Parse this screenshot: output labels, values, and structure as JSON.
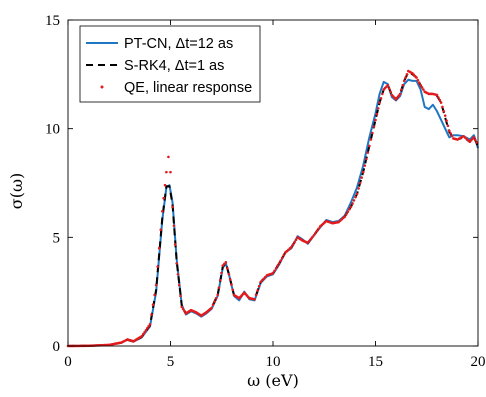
{
  "chart_data": {
    "type": "line",
    "xlabel": "ω (eV)",
    "ylabel": "σ(ω)",
    "xlim": [
      0,
      20
    ],
    "ylim": [
      0,
      15
    ],
    "xticks": [
      "0",
      "5",
      "10",
      "15",
      "20"
    ],
    "yticks": [
      "0",
      "5",
      "10",
      "15"
    ],
    "grid": false,
    "legend_position": "top-left",
    "colors": {
      "pt_cn": "#1f77c4",
      "s_rk4": "#000000",
      "qe": "#e41a1c"
    },
    "series": [
      {
        "name": "PT-CN,  Δt=12 as",
        "style": "solid",
        "points": [
          [
            0,
            0
          ],
          [
            1,
            0.01
          ],
          [
            2,
            0.05
          ],
          [
            2.6,
            0.15
          ],
          [
            2.9,
            0.3
          ],
          [
            3.2,
            0.2
          ],
          [
            3.6,
            0.4
          ],
          [
            4.0,
            0.9
          ],
          [
            4.3,
            2.5
          ],
          [
            4.6,
            5.8
          ],
          [
            4.8,
            7.3
          ],
          [
            4.95,
            7.4
          ],
          [
            5.1,
            6.6
          ],
          [
            5.3,
            4.0
          ],
          [
            5.55,
            1.9
          ],
          [
            5.75,
            1.45
          ],
          [
            6.0,
            1.6
          ],
          [
            6.25,
            1.5
          ],
          [
            6.5,
            1.35
          ],
          [
            6.75,
            1.5
          ],
          [
            7.0,
            1.7
          ],
          [
            7.3,
            2.3
          ],
          [
            7.55,
            3.6
          ],
          [
            7.7,
            3.8
          ],
          [
            7.85,
            3.3
          ],
          [
            8.1,
            2.3
          ],
          [
            8.35,
            2.1
          ],
          [
            8.6,
            2.5
          ],
          [
            8.85,
            2.15
          ],
          [
            9.1,
            2.1
          ],
          [
            9.4,
            2.9
          ],
          [
            9.7,
            3.2
          ],
          [
            10.0,
            3.3
          ],
          [
            10.3,
            3.75
          ],
          [
            10.6,
            4.3
          ],
          [
            10.9,
            4.5
          ],
          [
            11.2,
            5.05
          ],
          [
            11.45,
            4.9
          ],
          [
            11.7,
            4.7
          ],
          [
            12.0,
            5.1
          ],
          [
            12.3,
            5.45
          ],
          [
            12.6,
            5.8
          ],
          [
            12.9,
            5.7
          ],
          [
            13.2,
            5.75
          ],
          [
            13.5,
            6.0
          ],
          [
            13.8,
            6.6
          ],
          [
            14.1,
            7.3
          ],
          [
            14.4,
            8.3
          ],
          [
            14.7,
            9.6
          ],
          [
            15.0,
            10.7
          ],
          [
            15.2,
            11.6
          ],
          [
            15.4,
            12.15
          ],
          [
            15.6,
            12.05
          ],
          [
            15.8,
            11.45
          ],
          [
            16.0,
            11.3
          ],
          [
            16.2,
            11.5
          ],
          [
            16.4,
            12.05
          ],
          [
            16.6,
            12.25
          ],
          [
            16.8,
            12.2
          ],
          [
            17.0,
            12.2
          ],
          [
            17.2,
            11.8
          ],
          [
            17.4,
            11.0
          ],
          [
            17.6,
            10.9
          ],
          [
            17.8,
            11.1
          ],
          [
            18.0,
            10.8
          ],
          [
            18.2,
            10.4
          ],
          [
            18.4,
            10.0
          ],
          [
            18.6,
            9.6
          ],
          [
            18.8,
            9.7
          ],
          [
            19.0,
            9.7
          ],
          [
            19.3,
            9.65
          ],
          [
            19.6,
            9.5
          ],
          [
            19.8,
            9.7
          ],
          [
            20.0,
            9.1
          ]
        ]
      },
      {
        "name": "S-RK4,  Δt=1 as",
        "style": "dashed",
        "points": [
          [
            0,
            0
          ],
          [
            1,
            0.01
          ],
          [
            2,
            0.05
          ],
          [
            2.6,
            0.15
          ],
          [
            2.9,
            0.28
          ],
          [
            3.2,
            0.2
          ],
          [
            3.6,
            0.42
          ],
          [
            4.0,
            0.95
          ],
          [
            4.3,
            2.6
          ],
          [
            4.6,
            5.9
          ],
          [
            4.8,
            7.35
          ],
          [
            4.95,
            7.35
          ],
          [
            5.1,
            6.5
          ],
          [
            5.3,
            3.9
          ],
          [
            5.55,
            1.85
          ],
          [
            5.75,
            1.5
          ],
          [
            6.0,
            1.62
          ],
          [
            6.25,
            1.55
          ],
          [
            6.5,
            1.4
          ],
          [
            6.75,
            1.55
          ],
          [
            7.0,
            1.75
          ],
          [
            7.3,
            2.35
          ],
          [
            7.55,
            3.65
          ],
          [
            7.7,
            3.82
          ],
          [
            7.85,
            3.3
          ],
          [
            8.1,
            2.35
          ],
          [
            8.35,
            2.2
          ],
          [
            8.6,
            2.45
          ],
          [
            8.85,
            2.2
          ],
          [
            9.1,
            2.15
          ],
          [
            9.4,
            2.95
          ],
          [
            9.7,
            3.25
          ],
          [
            10.0,
            3.35
          ],
          [
            10.3,
            3.8
          ],
          [
            10.6,
            4.3
          ],
          [
            10.9,
            4.55
          ],
          [
            11.2,
            5.0
          ],
          [
            11.45,
            4.85
          ],
          [
            11.7,
            4.75
          ],
          [
            12.0,
            5.1
          ],
          [
            12.3,
            5.5
          ],
          [
            12.6,
            5.75
          ],
          [
            12.9,
            5.65
          ],
          [
            13.2,
            5.7
          ],
          [
            13.5,
            5.95
          ],
          [
            13.8,
            6.4
          ],
          [
            14.1,
            7.0
          ],
          [
            14.4,
            8.0
          ],
          [
            14.7,
            9.2
          ],
          [
            15.0,
            10.4
          ],
          [
            15.2,
            11.2
          ],
          [
            15.4,
            11.8
          ],
          [
            15.6,
            12.0
          ],
          [
            15.8,
            11.55
          ],
          [
            16.0,
            11.35
          ],
          [
            16.2,
            11.6
          ],
          [
            16.4,
            12.2
          ],
          [
            16.6,
            12.6
          ],
          [
            16.8,
            12.5
          ],
          [
            17.0,
            12.35
          ],
          [
            17.2,
            12.0
          ],
          [
            17.4,
            11.7
          ],
          [
            17.6,
            11.6
          ],
          [
            17.8,
            11.6
          ],
          [
            18.0,
            11.5
          ],
          [
            18.2,
            11.2
          ],
          [
            18.4,
            10.5
          ],
          [
            18.6,
            9.85
          ],
          [
            18.8,
            9.55
          ],
          [
            19.0,
            9.5
          ],
          [
            19.3,
            9.6
          ],
          [
            19.6,
            9.4
          ],
          [
            19.8,
            9.6
          ],
          [
            20.0,
            9.2
          ]
        ]
      },
      {
        "name": "QE, linear response",
        "style": "dotted",
        "points": [
          [
            0,
            0
          ],
          [
            1,
            0.01
          ],
          [
            2,
            0.05
          ],
          [
            2.6,
            0.16
          ],
          [
            2.9,
            0.3
          ],
          [
            3.2,
            0.22
          ],
          [
            3.6,
            0.45
          ],
          [
            4.0,
            1.0
          ],
          [
            4.3,
            2.8
          ],
          [
            4.6,
            6.2
          ],
          [
            4.8,
            8.0
          ],
          [
            4.9,
            8.7
          ],
          [
            5.0,
            8.0
          ],
          [
            5.1,
            6.4
          ],
          [
            5.3,
            3.8
          ],
          [
            5.55,
            1.8
          ],
          [
            5.75,
            1.5
          ],
          [
            6.0,
            1.65
          ],
          [
            6.25,
            1.55
          ],
          [
            6.5,
            1.4
          ],
          [
            6.75,
            1.55
          ],
          [
            7.0,
            1.75
          ],
          [
            7.3,
            2.35
          ],
          [
            7.55,
            3.7
          ],
          [
            7.7,
            3.85
          ],
          [
            7.85,
            3.3
          ],
          [
            8.1,
            2.35
          ],
          [
            8.35,
            2.2
          ],
          [
            8.6,
            2.45
          ],
          [
            8.85,
            2.2
          ],
          [
            9.1,
            2.15
          ],
          [
            9.4,
            2.95
          ],
          [
            9.7,
            3.25
          ],
          [
            10.0,
            3.35
          ],
          [
            10.3,
            3.8
          ],
          [
            10.6,
            4.3
          ],
          [
            10.9,
            4.55
          ],
          [
            11.2,
            5.0
          ],
          [
            11.45,
            4.85
          ],
          [
            11.7,
            4.75
          ],
          [
            12.0,
            5.1
          ],
          [
            12.3,
            5.5
          ],
          [
            12.6,
            5.75
          ],
          [
            12.9,
            5.65
          ],
          [
            13.2,
            5.7
          ],
          [
            13.5,
            5.95
          ],
          [
            13.8,
            6.4
          ],
          [
            14.1,
            7.0
          ],
          [
            14.4,
            8.0
          ],
          [
            14.7,
            9.2
          ],
          [
            15.0,
            10.4
          ],
          [
            15.2,
            11.2
          ],
          [
            15.4,
            11.8
          ],
          [
            15.6,
            12.0
          ],
          [
            15.8,
            11.55
          ],
          [
            16.0,
            11.35
          ],
          [
            16.2,
            11.6
          ],
          [
            16.4,
            12.2
          ],
          [
            16.6,
            12.65
          ],
          [
            16.8,
            12.55
          ],
          [
            17.0,
            12.35
          ],
          [
            17.2,
            12.0
          ],
          [
            17.4,
            11.7
          ],
          [
            17.6,
            11.6
          ],
          [
            17.8,
            11.6
          ],
          [
            18.0,
            11.55
          ],
          [
            18.2,
            11.2
          ],
          [
            18.4,
            10.6
          ],
          [
            18.6,
            9.9
          ],
          [
            18.8,
            9.55
          ],
          [
            19.0,
            9.5
          ],
          [
            19.3,
            9.65
          ],
          [
            19.6,
            9.4
          ],
          [
            19.8,
            9.6
          ],
          [
            20.0,
            9.25
          ]
        ]
      }
    ]
  }
}
